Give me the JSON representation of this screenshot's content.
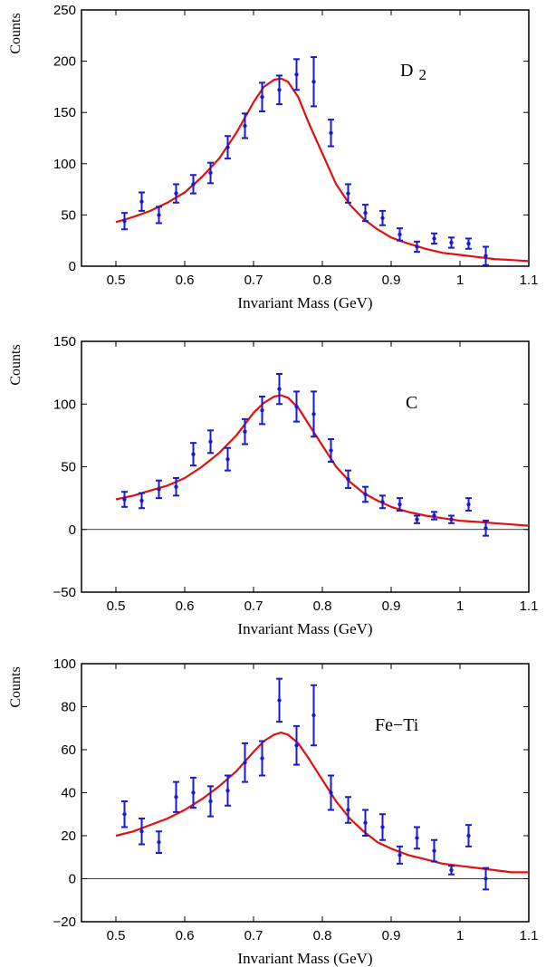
{
  "chart_data": [
    {
      "type": "scatter",
      "annotation": "D",
      "annotation_sub": "2",
      "xlabel": "Invariant Mass (GeV)",
      "ylabel": "Counts",
      "xlim": [
        0.45,
        1.1
      ],
      "ylim": [
        0,
        250
      ],
      "xticks": [
        "0.5",
        "0.6",
        "0.7",
        "0.8",
        "0.9",
        "1",
        "1.1"
      ],
      "yticks": [
        "0",
        "50",
        "100",
        "150",
        "200",
        "250"
      ],
      "show_zero_line": false,
      "colors": {
        "points": "#1a1acc",
        "fit": "#e01010"
      },
      "series": [
        {
          "x": [
            0.5125,
            0.5375,
            0.5625,
            0.5875,
            0.6125,
            0.6375,
            0.6625,
            0.6875,
            0.7125,
            0.7375,
            0.7625,
            0.7875,
            0.8125,
            0.8375,
            0.8625,
            0.8875,
            0.9125,
            0.9375,
            0.9625,
            0.9875,
            1.0125,
            1.0375
          ],
          "y": [
            44,
            63,
            50,
            71,
            80,
            91,
            116,
            137,
            165,
            172,
            187,
            180,
            130,
            71,
            52,
            47,
            31,
            19,
            27,
            23,
            22,
            10
          ],
          "err": [
            8,
            9,
            8,
            9,
            9,
            10,
            11,
            12,
            14,
            14,
            15,
            24,
            13,
            9,
            8,
            7,
            6,
            5,
            5,
            5,
            5,
            9
          ]
        },
        {
          "x": [
            0.5,
            0.525,
            0.55,
            0.575,
            0.6,
            0.625,
            0.65,
            0.675,
            0.7,
            0.715,
            0.73,
            0.74,
            0.75,
            0.765,
            0.78,
            0.8,
            0.82,
            0.84,
            0.86,
            0.88,
            0.9,
            0.925,
            0.95,
            0.975,
            1.0,
            1.025,
            1.05,
            1.075,
            1.1
          ],
          "y": [
            43,
            48,
            54,
            62,
            72,
            87,
            105,
            130,
            160,
            175,
            182,
            183,
            180,
            165,
            140,
            110,
            80,
            60,
            46,
            36,
            28,
            22,
            17,
            13,
            11,
            9,
            7,
            6,
            5
          ]
        }
      ]
    },
    {
      "type": "scatter",
      "annotation": "C",
      "annotation_sub": "",
      "xlabel": "Invariant Mass (GeV)",
      "ylabel": "Counts",
      "xlim": [
        0.45,
        1.1
      ],
      "ylim": [
        -50,
        150
      ],
      "xticks": [
        "0.5",
        "0.6",
        "0.7",
        "0.8",
        "0.9",
        "1",
        "1.1"
      ],
      "yticks": [
        "−50",
        "0",
        "50",
        "100",
        "150"
      ],
      "show_zero_line": true,
      "colors": {
        "points": "#1a1acc",
        "fit": "#e01010"
      },
      "series": [
        {
          "x": [
            0.5125,
            0.5375,
            0.5625,
            0.5875,
            0.6125,
            0.6375,
            0.6625,
            0.6875,
            0.7125,
            0.7375,
            0.7625,
            0.7875,
            0.8125,
            0.8375,
            0.8625,
            0.8875,
            0.9125,
            0.9375,
            0.9625,
            0.9875,
            1.0125,
            1.0375
          ],
          "y": [
            24,
            23,
            32,
            34,
            60,
            70,
            56,
            78,
            95,
            112,
            98,
            92,
            63,
            40,
            28,
            22,
            20,
            8,
            11,
            8,
            20,
            1
          ],
          "err": [
            6,
            6,
            7,
            7,
            9,
            9,
            9,
            10,
            11,
            12,
            12,
            18,
            9,
            7,
            6,
            5,
            5,
            3,
            3,
            3,
            5,
            6
          ]
        },
        {
          "x": [
            0.5,
            0.525,
            0.55,
            0.575,
            0.6,
            0.625,
            0.65,
            0.675,
            0.7,
            0.715,
            0.73,
            0.74,
            0.75,
            0.765,
            0.78,
            0.8,
            0.82,
            0.84,
            0.86,
            0.88,
            0.9,
            0.925,
            0.95,
            0.975,
            1.0,
            1.025,
            1.05,
            1.075,
            1.1
          ],
          "y": [
            24,
            27,
            31,
            35,
            41,
            50,
            61,
            75,
            93,
            101,
            106,
            107,
            105,
            97,
            84,
            67,
            50,
            38,
            29,
            23,
            18,
            14,
            11,
            9,
            7,
            6,
            5,
            4,
            3
          ]
        }
      ]
    },
    {
      "type": "scatter",
      "annotation": "Fe−Ti",
      "annotation_sub": "",
      "xlabel": "Invariant Mass (GeV)",
      "ylabel": "Counts",
      "xlim": [
        0.45,
        1.1
      ],
      "ylim": [
        -20,
        100
      ],
      "xticks": [
        "0.5",
        "0.6",
        "0.7",
        "0.8",
        "0.9",
        "1",
        "1.1"
      ],
      "yticks": [
        "−20",
        "0",
        "20",
        "40",
        "60",
        "80",
        "100"
      ],
      "show_zero_line": true,
      "colors": {
        "points": "#1a1acc",
        "fit": "#e01010"
      },
      "series": [
        {
          "x": [
            0.5125,
            0.5375,
            0.5625,
            0.5875,
            0.6125,
            0.6375,
            0.6625,
            0.6875,
            0.7125,
            0.7375,
            0.7625,
            0.7875,
            0.8125,
            0.8375,
            0.8625,
            0.8875,
            0.9125,
            0.9375,
            0.9625,
            0.9875,
            1.0125,
            1.0375
          ],
          "y": [
            30,
            22,
            17,
            38,
            40,
            36,
            41,
            54,
            56,
            83,
            62,
            76,
            40,
            32,
            26,
            24,
            11,
            19,
            13,
            4,
            20,
            0
          ],
          "err": [
            6,
            6,
            5,
            7,
            7,
            7,
            7,
            9,
            8,
            10,
            9,
            14,
            8,
            6,
            6,
            6,
            4,
            5,
            5,
            2,
            5,
            5
          ]
        },
        {
          "x": [
            0.5,
            0.525,
            0.55,
            0.575,
            0.6,
            0.625,
            0.65,
            0.675,
            0.7,
            0.715,
            0.73,
            0.74,
            0.75,
            0.765,
            0.78,
            0.8,
            0.82,
            0.84,
            0.86,
            0.88,
            0.9,
            0.925,
            0.95,
            0.975,
            1.0,
            1.025,
            1.05,
            1.075,
            1.1
          ],
          "y": [
            20,
            22,
            25,
            28,
            32,
            37,
            43,
            50,
            59,
            64,
            67,
            68,
            67,
            63,
            56,
            46,
            36,
            28,
            22,
            17,
            14,
            11,
            9,
            7,
            6,
            5,
            4,
            3,
            3
          ]
        }
      ]
    }
  ]
}
